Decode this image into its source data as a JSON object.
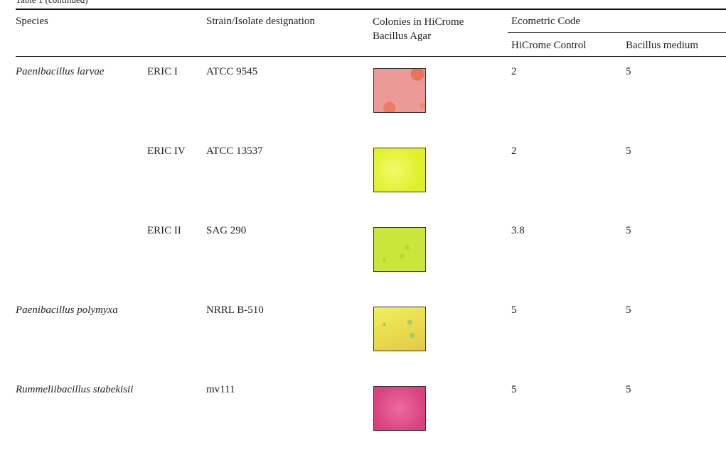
{
  "caption": "Table 1 (continued)",
  "table": {
    "headers": [
      "Species",
      "Strain/Isolate designation",
      "Colonies in HiCrome Bacillus Agar",
      "Ecometric Code"
    ],
    "subheaders": [
      "HiCrome Control",
      "Bacillus medium"
    ],
    "rows": [
      {
        "species": "Paenibacillus larvae",
        "variant": "ERIC I",
        "strain": "ATCC 9545",
        "hicrome_control": 2,
        "bacillus_medium": 5
      },
      {
        "variant": "ERIC IV",
        "strain": "ATCC 13537",
        "hicrome_control": 2,
        "bacillus_medium": 5
      },
      {
        "variant": "ERIC II",
        "strain": "SAG 290",
        "hicrome_control": 3.8,
        "bacillus_medium": 5
      },
      {
        "species": "Paenibacillus polymyxa",
        "strain": "NRRL B-510",
        "hicrome_control": 5,
        "bacillus_medium": 5
      },
      {
        "species": "Rummeliibacillus stabekisii",
        "strain": "mv111",
        "hicrome_control": 5,
        "bacillus_medium": 5
      }
    ]
  }
}
